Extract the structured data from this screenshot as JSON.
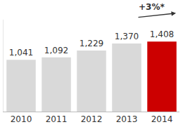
{
  "chart_data": {
    "type": "bar",
    "categories": [
      "2010",
      "2011",
      "2012",
      "2013",
      "2014"
    ],
    "values": [
      1041,
      1092,
      1229,
      1370,
      1408
    ],
    "value_labels": [
      "1,041",
      "1,092",
      "1,229",
      "1,370",
      "1,408"
    ],
    "colors": [
      "#d9d9d9",
      "#d9d9d9",
      "#d9d9d9",
      "#d9d9d9",
      "#cc0000"
    ],
    "data_labels": true,
    "tick_labels": "x",
    "ylim": [
      0,
      1850
    ],
    "annotations": [
      "+3%*"
    ]
  }
}
